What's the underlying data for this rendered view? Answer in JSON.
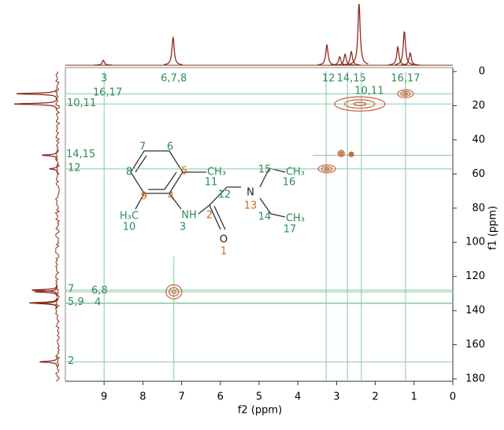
{
  "chart_data": {
    "type": "nmr2d",
    "xlabel": "f2 (ppm)",
    "ylabel": "f1 (ppm)",
    "xlim": [
      10,
      0
    ],
    "ylim": [
      0,
      180
    ],
    "xticks": [
      9,
      8,
      7,
      6,
      5,
      4,
      3,
      2,
      1,
      0
    ],
    "yticks": [
      0,
      20,
      40,
      60,
      80,
      100,
      120,
      140,
      160,
      180
    ],
    "color": "#8b2a1a",
    "contour_color": "#c8643c",
    "guide_color": "#86c9a2",
    "label_color": "#2e8b57",
    "f2_projection": {
      "x": [
        9.02,
        7.22,
        3.25,
        2.92,
        2.78,
        2.62,
        2.42,
        1.42,
        1.25,
        1.1
      ],
      "values": [
        0.08,
        0.45,
        0.33,
        0.14,
        0.18,
        0.22,
        1,
        0.3,
        0.55,
        0.2
      ]
    },
    "f1_projection": {
      "y": [
        13,
        19,
        49,
        57,
        128,
        129,
        135.5,
        135.8,
        170
      ],
      "values": [
        0.8,
        0.85,
        0.3,
        0.15,
        0.5,
        0.45,
        0.55,
        0.4,
        0.35
      ]
    },
    "cross_peaks": {
      "x": [
        2.4,
        1.22,
        2.88,
        2.62,
        3.25,
        7.2
      ],
      "y": [
        19,
        13,
        48,
        48.5,
        57,
        129
      ]
    },
    "h_guides": [
      {
        "label": "16,17",
        "y": 13
      },
      {
        "label": "10,11",
        "y": 19
      },
      {
        "label": "14,15",
        "y": 49
      },
      {
        "label": "12",
        "y": 57
      },
      {
        "label": "7",
        "y": 128
      },
      {
        "label": "6,8",
        "y": 129
      },
      {
        "label": "5,9",
        "y": 135.5
      },
      {
        "label": "4",
        "y": 135.8
      },
      {
        "label": "2",
        "y": 170
      }
    ],
    "v_guides": [
      {
        "label": "3",
        "x": 9.0
      },
      {
        "label": "6,7,8",
        "x": 7.2
      },
      {
        "label": "12",
        "x": 3.27
      },
      {
        "label": "14,15",
        "x": 2.72
      },
      {
        "label": "10,11",
        "x": 2.36
      },
      {
        "label": "16,17",
        "x": 1.22
      }
    ],
    "molecule": {
      "labels": [
        "7",
        "6",
        "8",
        "5",
        "4",
        "9",
        "CH₃",
        "11",
        "H₃C",
        "10",
        "NH",
        "3",
        "2",
        "12",
        "N",
        "13",
        "15",
        "CH₃",
        "16",
        "14",
        "CH₃",
        "17",
        "O",
        "1"
      ]
    }
  }
}
